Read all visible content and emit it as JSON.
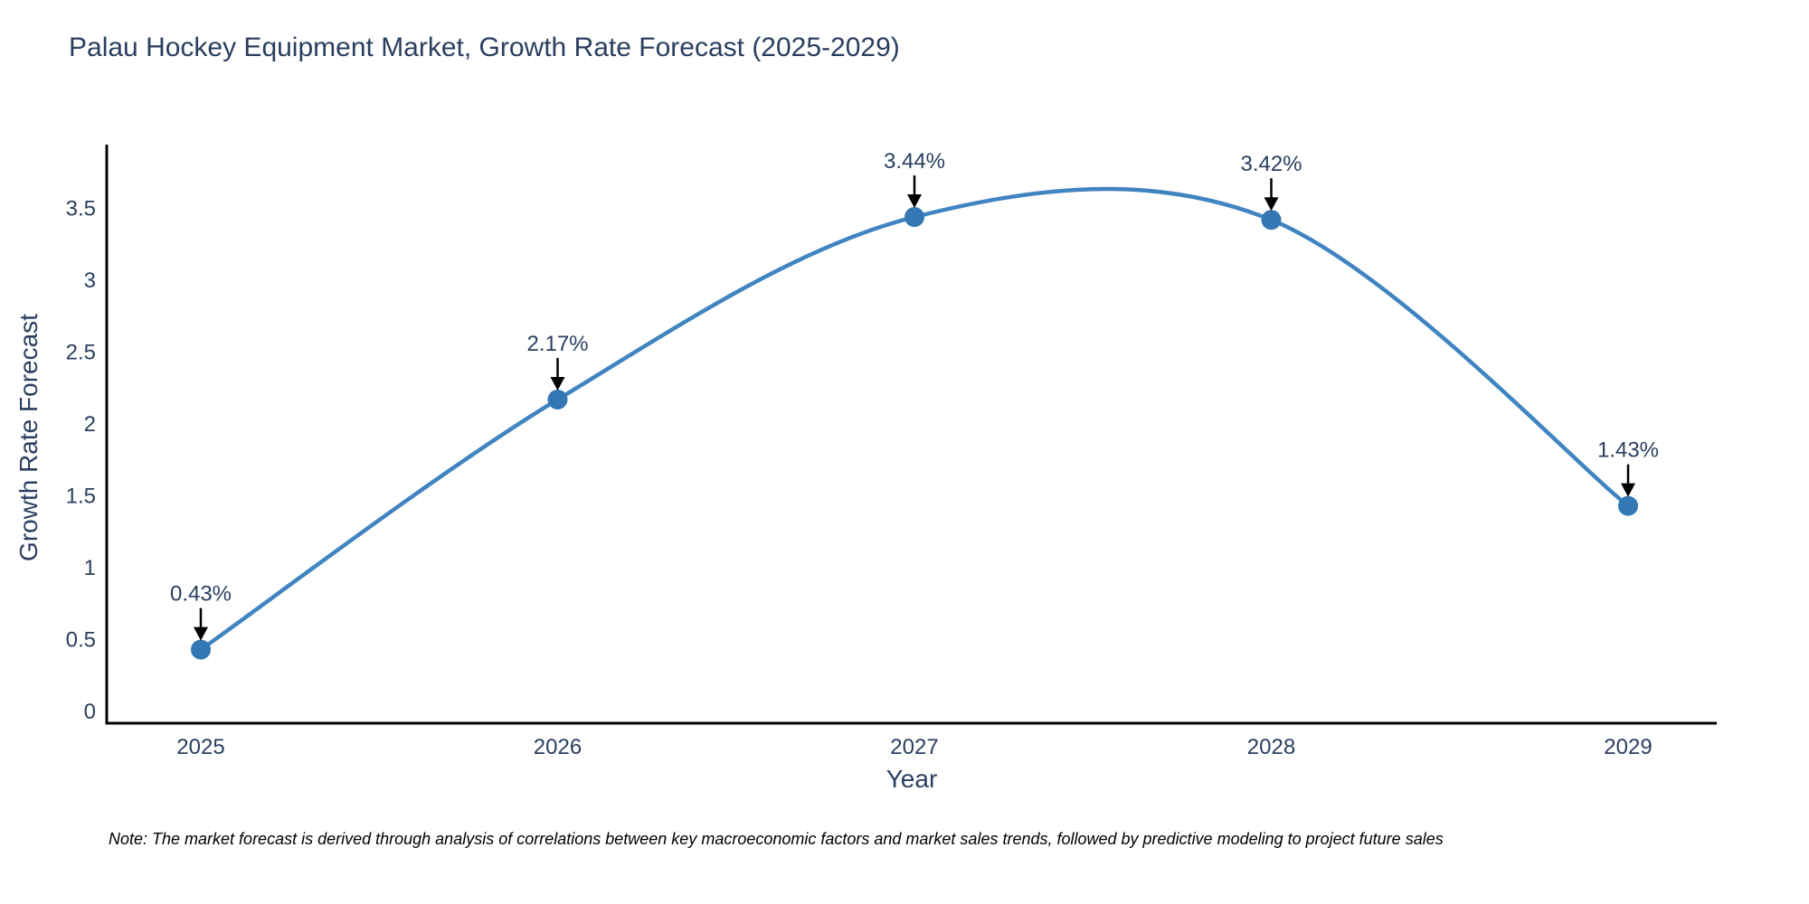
{
  "title": "Palau Hockey Equipment Market, Growth Rate Forecast (2025-2029)",
  "note": "Note: The market forecast is derived through analysis of correlations between key macroeconomic factors and market sales trends, followed by predictive modeling to project future sales",
  "chart_data": {
    "type": "line",
    "title": "Palau Hockey Equipment Market, Growth Rate Forecast (2025-2029)",
    "xlabel": "Year",
    "ylabel": "Growth Rate Forecast",
    "x": [
      2025,
      2026,
      2027,
      2028,
      2029
    ],
    "categories": [
      "2025",
      "2026",
      "2027",
      "2028",
      "2029"
    ],
    "values": [
      0.43,
      2.17,
      3.44,
      3.42,
      1.43
    ],
    "point_labels": [
      "0.43%",
      "2.17%",
      "3.44%",
      "3.42%",
      "1.43%"
    ],
    "line_shape": "spline",
    "grid": false,
    "legend_position": "none",
    "ylim": [
      0,
      3.5
    ],
    "yticks": [
      0,
      0.5,
      1,
      1.5,
      2,
      2.5,
      3,
      3.5
    ],
    "ytick_labels": [
      "0",
      "0.5",
      "1",
      "1.5",
      "2",
      "2.5",
      "3",
      "3.5"
    ],
    "colors": {
      "line": "#4084c1",
      "marker": "#3377b4",
      "axis_line": "#000000",
      "tick_text": "#2a3f5f",
      "annotation_text": "#2a3f5f",
      "annotation_arrow": "#000000",
      "background": "#ffffff"
    }
  }
}
